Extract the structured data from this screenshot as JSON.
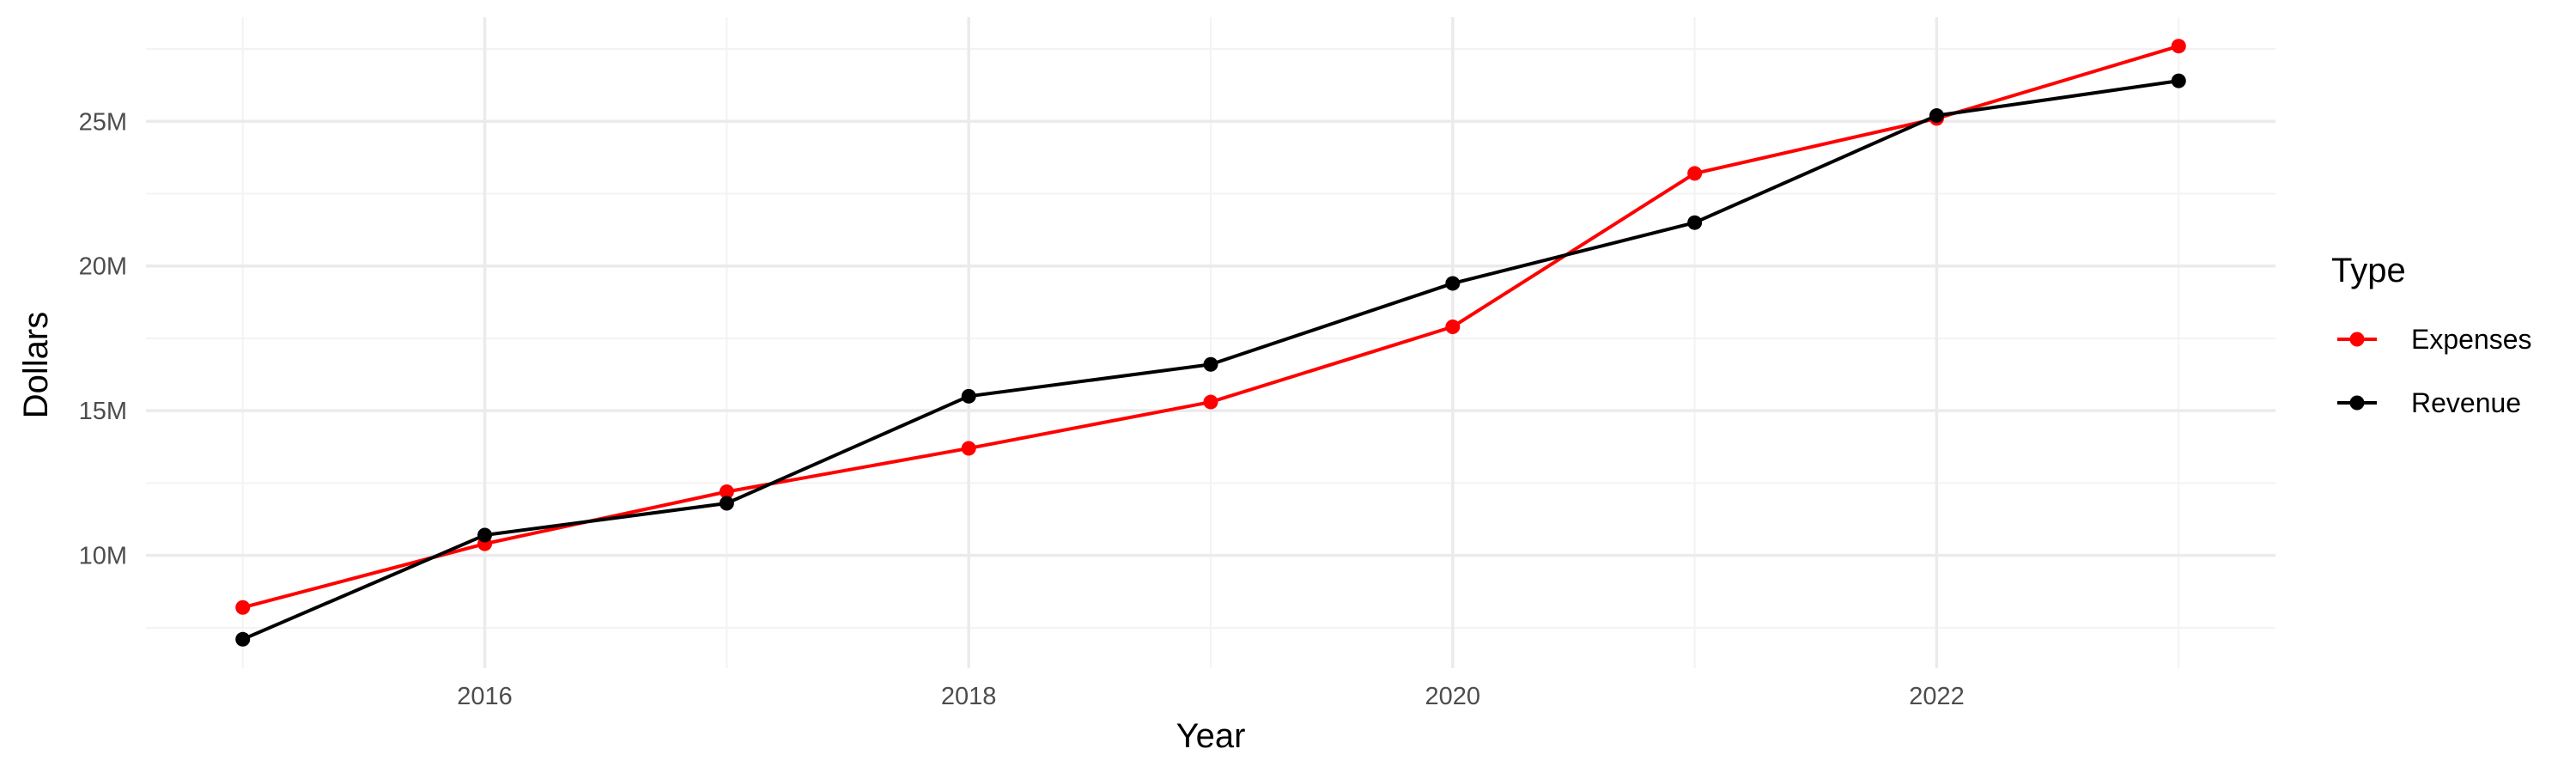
{
  "chart_data": {
    "type": "line",
    "title": "",
    "xlabel": "Year",
    "ylabel": "Dollars",
    "x": [
      2015,
      2016,
      2017,
      2018,
      2019,
      2020,
      2021,
      2022,
      2023
    ],
    "xlim": [
      2014.6,
      2023.4
    ],
    "ylim": [
      6.1,
      28.6
    ],
    "x_ticks": [
      2016,
      2018,
      2020,
      2022
    ],
    "x_minor_ticks": [
      2015,
      2017,
      2019,
      2021,
      2023
    ],
    "y_ticks": [
      {
        "value": 10,
        "label": "10M"
      },
      {
        "value": 15,
        "label": "15M"
      },
      {
        "value": 20,
        "label": "20M"
      },
      {
        "value": 25,
        "label": "25M"
      }
    ],
    "y_minor_ticks": [
      7.5,
      12.5,
      17.5,
      22.5,
      27.5
    ],
    "y_unit": "millions of dollars",
    "grid": true,
    "legend": {
      "title": "Type",
      "placement": "right"
    },
    "series": [
      {
        "name": "Expenses",
        "color": "#ff0000",
        "values": [
          8.2,
          10.4,
          12.2,
          13.7,
          15.3,
          17.9,
          23.2,
          25.1,
          27.6
        ]
      },
      {
        "name": "Revenue",
        "color": "#000000",
        "values": [
          7.1,
          10.7,
          11.8,
          15.5,
          16.6,
          19.4,
          21.5,
          25.2,
          26.4
        ]
      }
    ]
  }
}
